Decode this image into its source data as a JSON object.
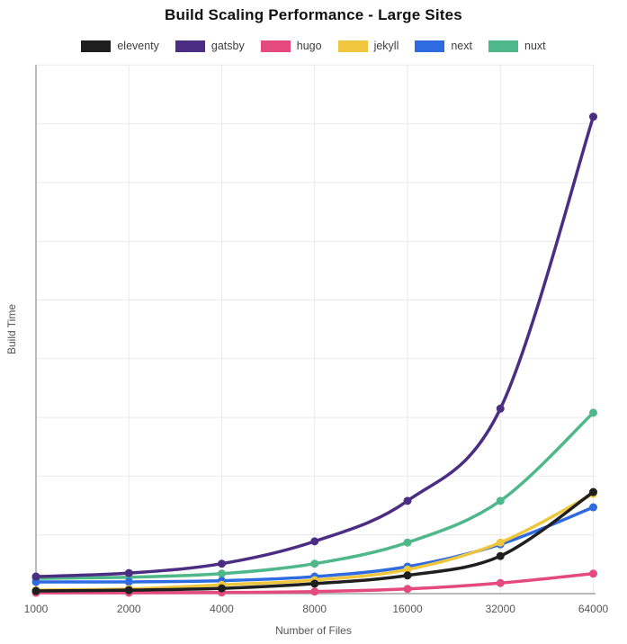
{
  "colors": {
    "background": "#ffffff",
    "grid": "#e9e9e9",
    "axis": "#a3a3a3",
    "tick_text": "#565656",
    "axis_label_text": "#565656",
    "title_text": "#111111",
    "legend_text": "#3f3f3f"
  },
  "chart_data": {
    "type": "line",
    "title": "Build Scaling Performance - Large Sites",
    "xlabel": "Number of Files",
    "ylabel": "Build Time",
    "categories": [
      "1000",
      "2000",
      "4000",
      "8000",
      "16000",
      "32000",
      "64000"
    ],
    "x_scale": "log2-categorical-equal-spacing",
    "grid": true,
    "legend_position": "top",
    "y_axis": {
      "min": 0,
      "max": 900,
      "gridline_step": 100,
      "tick_labels_visible": false
    },
    "marker_radius": 4.5,
    "line_width": 3.5,
    "series": [
      {
        "name": "eleventy",
        "color": "#1f1f1f",
        "values": [
          4.5,
          6,
          9,
          17,
          31,
          64,
          173
        ]
      },
      {
        "name": "gatsby",
        "color": "#4b2d83",
        "values": [
          29,
          35,
          51,
          89,
          158,
          315,
          812
        ]
      },
      {
        "name": "hugo",
        "color": "#e44a7e",
        "values": [
          1.5,
          1.6,
          2,
          3.5,
          8,
          18,
          34
        ]
      },
      {
        "name": "jekyll",
        "color": "#f0c63e",
        "values": [
          6,
          8,
          15,
          23,
          41,
          87,
          170
        ]
      },
      {
        "name": "next",
        "color": "#2e6be0",
        "values": [
          20,
          20,
          22,
          29,
          46,
          84,
          147
        ]
      },
      {
        "name": "nuxt",
        "color": "#4eb88a",
        "values": [
          26,
          28,
          34,
          51,
          87,
          158,
          308
        ]
      }
    ]
  }
}
